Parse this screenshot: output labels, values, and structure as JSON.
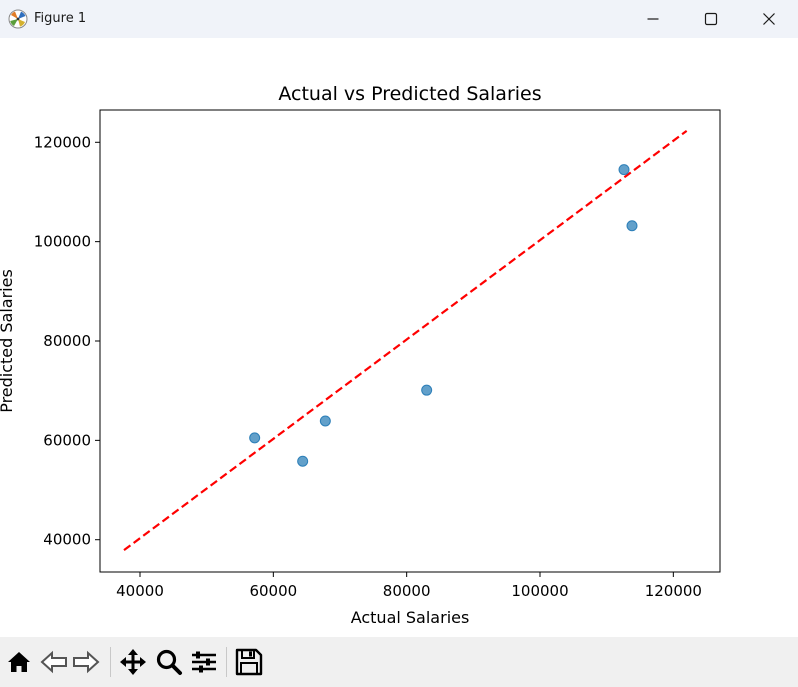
{
  "window": {
    "title": "Figure 1",
    "controls": [
      "minimize",
      "maximize",
      "close"
    ]
  },
  "toolbar": {
    "buttons": [
      "home-icon",
      "back-icon",
      "forward-icon",
      "pan-icon",
      "zoom-icon",
      "configure-subplots-icon",
      "save-icon"
    ]
  },
  "chart_data": {
    "type": "scatter",
    "title": "Actual vs Predicted Salaries",
    "xlabel": "Actual Salaries",
    "ylabel": "Predicted Salaries",
    "xlim": [
      34000,
      127000
    ],
    "ylim": [
      33500,
      126500
    ],
    "xticks": [
      40000,
      60000,
      80000,
      100000,
      120000
    ],
    "yticks": [
      40000,
      60000,
      80000,
      100000,
      120000
    ],
    "xtick_labels": [
      "40000",
      "60000",
      "80000",
      "100000",
      "120000"
    ],
    "ytick_labels": [
      "40000",
      "60000",
      "80000",
      "100000",
      "120000"
    ],
    "grid": false,
    "series": [
      {
        "kind": "points",
        "color": "#1f77b4",
        "alpha": 0.7,
        "x": [
          57200,
          64400,
          67800,
          83000,
          112600,
          113800
        ],
        "y": [
          60500,
          55800,
          63900,
          70100,
          114500,
          103200
        ]
      },
      {
        "kind": "line",
        "color": "#ff0000",
        "style": "dashed",
        "x": [
          37600,
          122000
        ],
        "y": [
          37900,
          122300
        ]
      }
    ]
  }
}
